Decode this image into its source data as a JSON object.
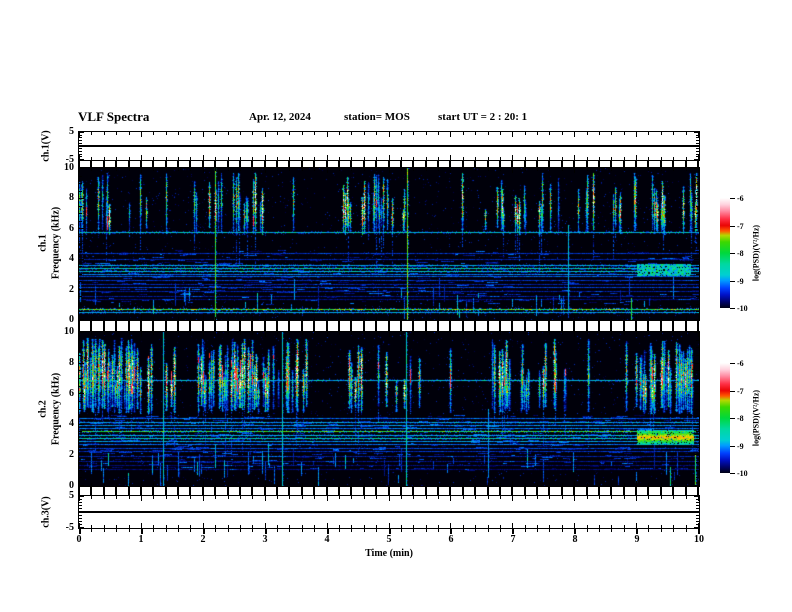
{
  "header": {
    "title": "VLF Spectra",
    "date": "Apr. 12, 2024",
    "station": "station= MOS",
    "start_ut": "start UT =  2 : 20: 1"
  },
  "x_axis": {
    "label": "Time (min)",
    "min": 0,
    "max": 10,
    "major_step": 1,
    "minor_step": 0.2,
    "tick_labels": [
      "0",
      "1",
      "2",
      "3",
      "4",
      "5",
      "6",
      "7",
      "8",
      "9",
      "10"
    ]
  },
  "panels": [
    {
      "id": "ch1_volt",
      "ylabel": "ch.1(V)",
      "ymin": -5,
      "ymax": 5,
      "tick_labels": [
        "5",
        "-5"
      ]
    },
    {
      "id": "ch1_spec",
      "ylabel_channel": "ch.1",
      "ylabel_axis": "Frequency (kHz)",
      "ymin": 0,
      "ymax": 10,
      "tick_labels": [
        "10",
        "8",
        "6",
        "4",
        "2",
        "0"
      ]
    },
    {
      "id": "ch2_spec",
      "ylabel_channel": "ch.2",
      "ylabel_axis": "Frequency (kHz)",
      "ymin": 0,
      "ymax": 10,
      "tick_labels": [
        "10",
        "8",
        "6",
        "4",
        "2",
        "0"
      ]
    },
    {
      "id": "ch3_volt",
      "ylabel": "ch.3(V)",
      "ymin": -5,
      "ymax": 5,
      "tick_labels": [
        "5",
        "-5"
      ]
    }
  ],
  "colorbar": {
    "label": "log(PSD)(V²/Hz)",
    "tick_labels": [
      "-6",
      "-7",
      "-8",
      "-9",
      "-10"
    ],
    "top_value": -6,
    "bottom_value": -10,
    "gradient_stops": [
      [
        0,
        "#ffffff"
      ],
      [
        6,
        "#ffd2de"
      ],
      [
        12,
        "#ff8aa2"
      ],
      [
        19,
        "#ff3046"
      ],
      [
        25,
        "#ea0505"
      ],
      [
        30,
        "#ff5a00"
      ],
      [
        34,
        "#b4d800"
      ],
      [
        40,
        "#3cd800"
      ],
      [
        50,
        "#00d83c"
      ],
      [
        60,
        "#00d8a0"
      ],
      [
        70,
        "#00cfd2"
      ],
      [
        75,
        "#009cff"
      ],
      [
        82,
        "#0040ff"
      ],
      [
        88,
        "#0012c8"
      ],
      [
        94,
        "#000470"
      ],
      [
        100,
        "#000014"
      ]
    ]
  },
  "chart_data": {
    "type": "heatmap",
    "title": "VLF Spectra",
    "xlabel": "Time (min)",
    "xlim": [
      0,
      10
    ],
    "panels": [
      {
        "name": "ch.1(V)",
        "type": "line",
        "ylim": [
          -5,
          5
        ],
        "x": [
          0,
          10
        ],
        "y": [
          0,
          0
        ],
        "description": "flat voltage trace at 0 V"
      },
      {
        "name": "ch.1 spectrogram",
        "type": "heatmap",
        "ylabel": "Frequency (kHz)",
        "ylim": [
          0,
          10
        ],
        "zlabel": "log(PSD)(V²/Hz)",
        "zlim": [
          -10,
          -6
        ],
        "features": {
          "seed": 7,
          "wide": false,
          "burst_band_khz": [
            5.8,
            9.7
          ],
          "burst_density": 0.52,
          "red_core_probability": 0.06,
          "persistent_lines": [
            {
              "f_khz": 5.75,
              "level": 0.42
            },
            {
              "f_khz": 4.35,
              "level": 0.2
            },
            {
              "f_khz": 4.0,
              "level": 0.17
            },
            {
              "f_khz": 3.55,
              "level": 0.38
            },
            {
              "f_khz": 3.35,
              "level": 0.45
            },
            {
              "f_khz": 3.2,
              "level": 0.42
            },
            {
              "f_khz": 3.0,
              "level": 0.3
            },
            {
              "f_khz": 2.85,
              "level": 0.26
            },
            {
              "f_khz": 2.6,
              "level": 0.2
            },
            {
              "f_khz": 2.3,
              "level": 0.17
            },
            {
              "f_khz": 2.1,
              "level": 0.22
            },
            {
              "f_khz": 1.85,
              "level": 0.17
            },
            {
              "f_khz": 1.55,
              "level": 0.15
            },
            {
              "f_khz": 1.3,
              "level": 0.13
            },
            {
              "f_khz": 0.65,
              "level": 0.6
            },
            {
              "f_khz": 0.45,
              "level": 0.38
            }
          ],
          "events": [
            {
              "t_min": 2.2,
              "f0": 0,
              "f1": 10,
              "level": 0.6
            },
            {
              "t_min": 5.3,
              "f0": 0,
              "f1": 10,
              "level": 0.62
            },
            {
              "t_min": 7.9,
              "f0": 0.6,
              "f1": 6.2,
              "level": 0.4
            },
            {
              "t_min": 8.92,
              "f0": 0,
              "f1": 1.4,
              "level": 0.55
            }
          ],
          "patch": {
            "t0": 9.0,
            "t1": 9.85,
            "f0": 2.9,
            "f1": 3.65,
            "hot": false
          },
          "speckle_dashes": 380,
          "bottom_dashes": 45
        }
      },
      {
        "name": "ch.2 spectrogram",
        "type": "heatmap",
        "ylabel": "Frequency (kHz)",
        "ylim": [
          0,
          10
        ],
        "zlabel": "log(PSD)(V²/Hz)",
        "zlim": [
          -10,
          -6
        ],
        "features": {
          "seed": 13,
          "wide": true,
          "burst_band_khz": [
            4.9,
            9.6
          ],
          "burst_density": 0.8,
          "red_core_probability": 0.26,
          "persistent_lines": [
            {
              "f_khz": 6.85,
              "level": 0.4
            },
            {
              "f_khz": 4.35,
              "level": 0.28
            },
            {
              "f_khz": 4.15,
              "level": 0.36
            },
            {
              "f_khz": 3.95,
              "level": 0.33
            },
            {
              "f_khz": 3.75,
              "level": 0.3
            },
            {
              "f_khz": 3.5,
              "level": 0.55
            },
            {
              "f_khz": 3.3,
              "level": 0.4
            },
            {
              "f_khz": 3.1,
              "level": 0.44
            },
            {
              "f_khz": 2.9,
              "level": 0.35
            },
            {
              "f_khz": 2.7,
              "level": 0.28
            },
            {
              "f_khz": 2.45,
              "level": 0.23
            },
            {
              "f_khz": 2.2,
              "level": 0.2
            },
            {
              "f_khz": 1.9,
              "level": 0.17
            },
            {
              "f_khz": 1.6,
              "level": 0.15
            },
            {
              "f_khz": 1.3,
              "level": 0.13
            },
            {
              "f_khz": 1.05,
              "level": 0.12
            }
          ],
          "events": [
            {
              "t_min": 1.35,
              "f0": 0,
              "f1": 10,
              "level": 0.42
            },
            {
              "t_min": 3.28,
              "f0": 0,
              "f1": 10,
              "level": 0.45
            },
            {
              "t_min": 5.29,
              "f0": 0,
              "f1": 10,
              "level": 0.45
            },
            {
              "t_min": 6.6,
              "f0": 0.5,
              "f1": 5.0,
              "level": 0.34
            },
            {
              "t_min": 9.55,
              "f0": 0,
              "f1": 1.2,
              "level": 0.5
            },
            {
              "t_min": 9.95,
              "f0": 0,
              "f1": 2.0,
              "level": 0.6
            }
          ],
          "patch": {
            "t0": 9.0,
            "t1": 9.9,
            "f0": 2.7,
            "f1": 3.6,
            "hot": true
          },
          "speckle_dashes": 520,
          "bottom_dashes": 60
        }
      },
      {
        "name": "ch.3(V)",
        "type": "line",
        "ylim": [
          -5,
          5
        ],
        "x": [
          0,
          10
        ],
        "y": [
          0,
          0
        ],
        "description": "flat voltage trace at 0 V"
      }
    ]
  }
}
